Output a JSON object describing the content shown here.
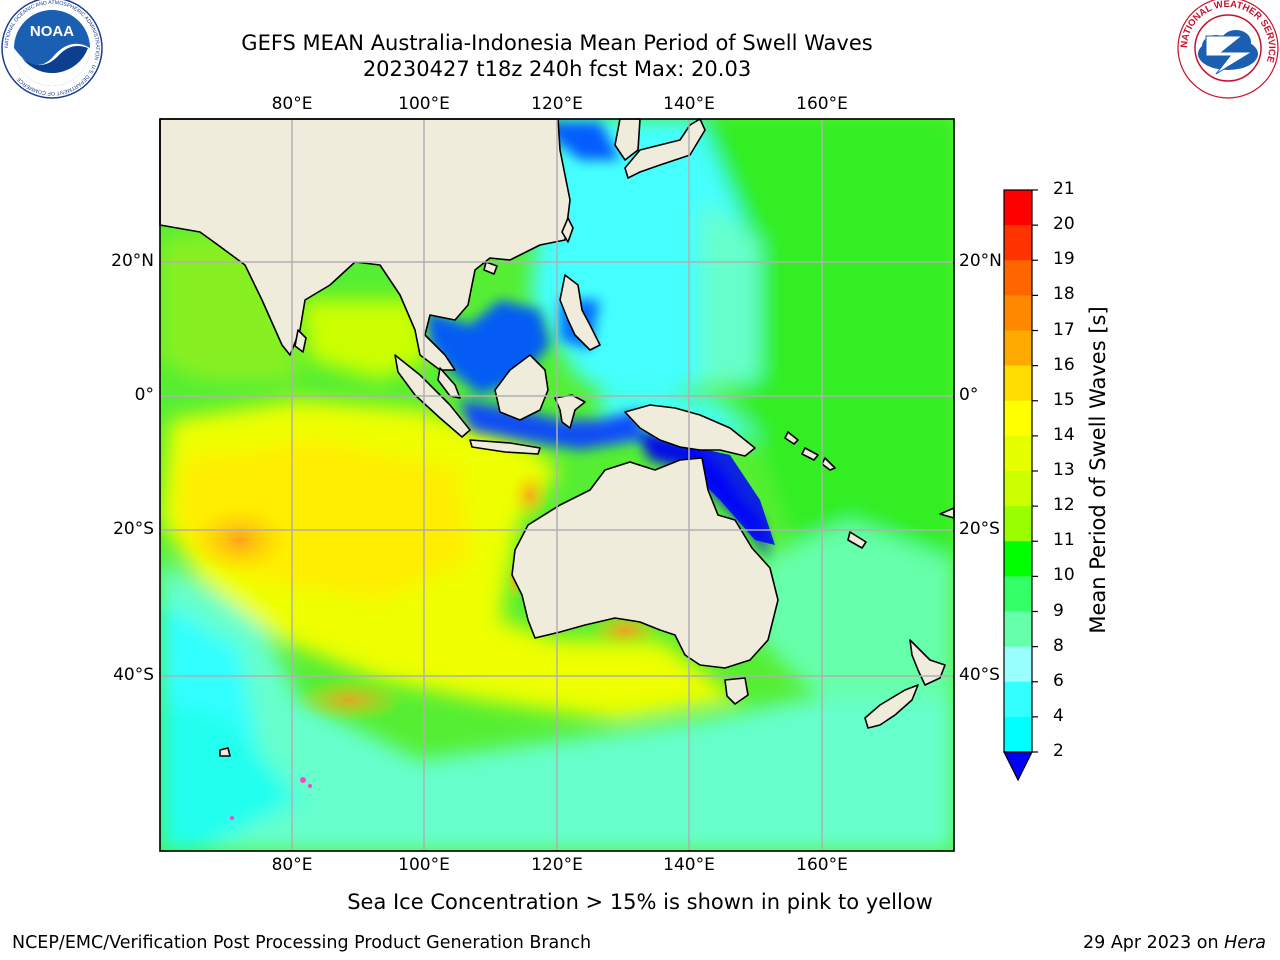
{
  "title_line1": "GEFS MEAN Australia-Indonesia Mean Period of Swell Waves",
  "title_line2": "20230427 t18z 240h fcst   Max: 20.03",
  "map": {
    "lon_labels": [
      "80°E",
      "100°E",
      "120°E",
      "140°E",
      "160°E"
    ],
    "lat_labels": [
      "20°N",
      "0°",
      "20°S",
      "40°S"
    ],
    "land_color": "#efecdc",
    "grid_color": "#b0b0b0"
  },
  "colorbar": {
    "label": "Mean Period of Swell Waves [s]",
    "ticks": [
      "21",
      "20",
      "19",
      "18",
      "17",
      "16",
      "15",
      "14",
      "13",
      "12",
      "11",
      "10",
      "9",
      "8",
      "6",
      "4",
      "2"
    ],
    "colors": [
      "#ff0000",
      "#ff3300",
      "#ff6600",
      "#ff8800",
      "#ffaa00",
      "#ffdd00",
      "#ffff00",
      "#e6ff00",
      "#ccff00",
      "#99ff00",
      "#00ff00",
      "#33ff66",
      "#66ffaa",
      "#99ffff",
      "#33ffff",
      "#00ffff",
      "#00ccff",
      "#0066ff"
    ],
    "extend_color": "#0000ff"
  },
  "note": "Sea Ice Concentration > 15% is shown in pink to yellow",
  "footer_left": "NCEP/EMC/Verification Post Processing Product Generation Branch",
  "footer_date": "29 Apr 2023 on ",
  "footer_host": "Hera",
  "logos": {
    "left": "NOAA",
    "left_ring": "NATIONAL OCEANIC AND ATMOSPHERIC ADMINISTRATION · U.S. DEPARTMENT OF COMMERCE",
    "right_ring": "NATIONAL WEATHER SERVICE"
  }
}
